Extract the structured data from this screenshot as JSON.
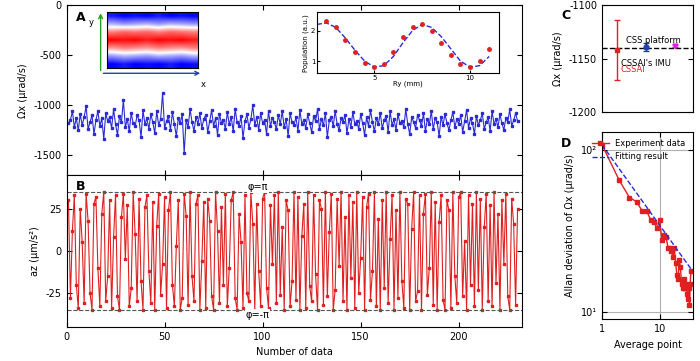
{
  "chart_data": [
    {
      "panel": "A",
      "type": "line",
      "ylabel": "Ωx (μrad/s)",
      "x": [
        1,
        2,
        3,
        4,
        5,
        6,
        7,
        8,
        9,
        10,
        11,
        12,
        13,
        14,
        15,
        16,
        17,
        18,
        19,
        20,
        21,
        22,
        23,
        24,
        25,
        26,
        27,
        28,
        29,
        30,
        31,
        32,
        33,
        34,
        35,
        36,
        37,
        38,
        39,
        40,
        41,
        42,
        43,
        44,
        45,
        46,
        47,
        48,
        49,
        50,
        51,
        52,
        53,
        54,
        55,
        56,
        57,
        58,
        59,
        60,
        61,
        62,
        63,
        64,
        65,
        66,
        67,
        68,
        69,
        70,
        71,
        72,
        73,
        74,
        75,
        76,
        77,
        78,
        79,
        80,
        81,
        82,
        83,
        84,
        85,
        86,
        87,
        88,
        89,
        90,
        91,
        92,
        93,
        94,
        95,
        96,
        97,
        98,
        99,
        100,
        101,
        102,
        103,
        104,
        105,
        106,
        107,
        108,
        109,
        110,
        111,
        112,
        113,
        114,
        115,
        116,
        117,
        118,
        119,
        120,
        121,
        122,
        123,
        124,
        125,
        126,
        127,
        128,
        129,
        130,
        131,
        132,
        133,
        134,
        135,
        136,
        137,
        138,
        139,
        140,
        141,
        142,
        143,
        144,
        145,
        146,
        147,
        148,
        149,
        150,
        151,
        152,
        153,
        154,
        155,
        156,
        157,
        158,
        159,
        160,
        161,
        162,
        163,
        164,
        165,
        166,
        167,
        168,
        169,
        170,
        171,
        172,
        173,
        174,
        175,
        176,
        177,
        178,
        179,
        180,
        181,
        182,
        183,
        184,
        185,
        186,
        187,
        188,
        189,
        190,
        191,
        192,
        193,
        194,
        195,
        196,
        197,
        198,
        199,
        200,
        201,
        202,
        203,
        204,
        205,
        206,
        207,
        208,
        209,
        210,
        211,
        212,
        213,
        214,
        215,
        216,
        217,
        218,
        219,
        220,
        221,
        222,
        223,
        224,
        225,
        226,
        227,
        228,
        229,
        230
      ],
      "values": [
        -1180,
        -1150,
        -1060,
        -1220,
        -1130,
        -1250,
        -1090,
        -1200,
        -1120,
        -1010,
        -1240,
        -1170,
        -1100,
        -1290,
        -1150,
        -1060,
        -1210,
        -1130,
        -1340,
        -1080,
        -1160,
        -1120,
        -1230,
        -1040,
        -1190,
        -1300,
        -1110,
        -1170,
        -950,
        -1220,
        -1140,
        -1260,
        -1080,
        -1180,
        -1210,
        -1100,
        -1150,
        -1320,
        -1050,
        -1190,
        -1130,
        -1240,
        -1090,
        -1170,
        -1280,
        -1060,
        -1200,
        -1140,
        -880,
        -1230,
        -1160,
        -1110,
        -1250,
        -1070,
        -1190,
        -1310,
        -1130,
        -1180,
        -1090,
        -1480,
        -1150,
        -1220,
        -1040,
        -1170,
        -1260,
        -1120,
        -1190,
        -1080,
        -1230,
        -1140,
        -1100,
        -1270,
        -1160,
        -1050,
        -1210,
        -1130,
        -1300,
        -1090,
        -1180,
        -1150,
        -1240,
        -1070,
        -1190,
        -1120,
        -1260,
        -1040,
        -1170,
        -1210,
        -1110,
        -1330,
        -1160,
        -1090,
        -1230,
        -1140,
        -1000,
        -1200,
        -1120,
        -1250,
        -1080,
        -1180,
        -1150,
        -1290,
        -1060,
        -1210,
        -1130,
        -1170,
        -1240,
        -1100,
        -1190,
        -1060,
        -1220,
        -1140,
        -1310,
        -1080,
        -1170,
        -1200,
        -1120,
        -1260,
        -1050,
        -1190,
        -1150,
        -1230,
        -1090,
        -1180,
        -1270,
        -1110,
        -1160,
        -1040,
        -1240,
        -1140,
        -1200,
        -1080,
        -1320,
        -1150,
        -1120,
        -1210,
        -1060,
        -1190,
        -1250,
        -1130,
        -1170,
        -1100,
        -1280,
        -1140,
        -1220,
        -1070,
        -1190,
        -1160,
        -1240,
        -1090,
        -1180,
        -1300,
        -1120,
        -1210,
        -1050,
        -1170,
        -1260,
        -1130,
        -1190,
        -1080,
        -1230,
        -1150,
        -1110,
        -1270,
        -1060,
        -1200,
        -1140,
        -1250,
        -1090,
        -1180,
        -1160,
        -1220,
        -1040,
        -1190,
        -1290,
        -1120,
        -1170,
        -1230,
        -1100,
        -1150,
        -1210,
        -1080,
        -1260,
        -1140,
        -1190,
        -1060,
        -1240,
        -1130,
        -1170,
        -1310,
        -1120,
        -1200,
        -1090,
        -1180,
        -1250,
        -1150,
        -1070,
        -1220,
        -1140,
        -1190,
        -1100,
        -1270,
        -1160,
        -1050,
        -1230,
        -1130,
        -1180,
        -1290,
        -1110,
        -1200,
        -1150,
        -1080,
        -1240,
        -1170,
        -1120,
        -1260,
        -1060,
        -1190,
        -1140,
        -1220,
        -1090,
        -1180,
        -1250,
        -1130,
        -1170,
        -1040,
        -1210,
        -1150,
        -1080,
        -1160
      ],
      "color": "#2b2bd6",
      "marker": "square",
      "line_style": "solid",
      "xlim": [
        0,
        232
      ],
      "ylim": [
        -1700,
        0
      ],
      "xticks": [
        0,
        50,
        100,
        150,
        200
      ],
      "yticks": [
        0,
        -500,
        -1000,
        -1500
      ],
      "tick_labels": "y",
      "grid": false,
      "inset_image": {
        "cells": [
          [
            -0.9,
            -1,
            -0.95,
            -1,
            -0.9,
            -1,
            -0.95,
            -1
          ],
          [
            -0.3,
            -0.4,
            -0.35,
            -0.3,
            -0.4,
            -0.3,
            -0.35,
            -0.4
          ],
          [
            0.5,
            0.6,
            0.55,
            0.6,
            0.5,
            0.6,
            0.55,
            0.5
          ],
          [
            1,
            0.95,
            1,
            0.9,
            1,
            0.95,
            1,
            0.9
          ],
          [
            0.4,
            0.5,
            0.45,
            0.4,
            0.5,
            0.45,
            0.4,
            0.5
          ],
          [
            -0.4,
            -0.3,
            -0.35,
            -0.4,
            -0.3,
            -0.35,
            -0.4,
            -0.3
          ],
          [
            -1,
            -0.9,
            -1,
            -0.95,
            -1,
            -0.9,
            -1,
            -0.95
          ]
        ],
        "color_range": [
          -1,
          1
        ],
        "arrow_labels": [
          "y",
          "x"
        ]
      },
      "inset": {
        "type": "scatter",
        "xlabel": "Ry (mm)",
        "ylabel": "Population (a.u.)",
        "xlim": [
          2,
          11.5
        ],
        "ylim": [
          0.6,
          2.6
        ],
        "xticks": [
          5,
          10
        ],
        "yticks": [
          1,
          2
        ],
        "points": {
          "x": [
            2.5,
            3,
            3.5,
            4,
            4.5,
            5,
            5.5,
            6,
            6.5,
            7,
            7.5,
            8,
            8.5,
            9,
            9.5,
            10,
            10.5,
            11
          ],
          "values": [
            2.3,
            2.1,
            1.7,
            1.3,
            0.95,
            0.8,
            0.9,
            1.3,
            1.8,
            2.1,
            2.2,
            2.0,
            1.6,
            1.2,
            0.9,
            0.8,
            1.0,
            1.4
          ],
          "color": "#e02020",
          "marker": "circle"
        },
        "fit": {
          "x": [
            2,
            2.5,
            3,
            3.5,
            4,
            4.5,
            5,
            5.5,
            6,
            6.5,
            7,
            7.5,
            8,
            8.5,
            9,
            9.5,
            10,
            10.5,
            11
          ],
          "values": [
            2.2,
            2.25,
            2.1,
            1.75,
            1.35,
            1.0,
            0.8,
            0.85,
            1.15,
            1.6,
            2.0,
            2.2,
            2.1,
            1.8,
            1.4,
            1.0,
            0.8,
            0.85,
            1.15
          ],
          "color": "#2b2bd6",
          "line_style": "dashed"
        }
      }
    },
    {
      "panel": "B",
      "type": "line",
      "ylabel": "az (μm/s²)",
      "xlabel": "Number of data",
      "x": [
        1,
        2,
        3,
        4,
        5,
        6,
        7,
        8,
        9,
        10,
        11,
        12,
        13,
        14,
        15,
        16,
        17,
        18,
        19,
        20,
        21,
        22,
        23,
        24,
        25,
        26,
        27,
        28,
        29,
        30,
        31,
        32,
        33,
        34,
        35,
        36,
        37,
        38,
        39,
        40,
        41,
        42,
        43,
        44,
        45,
        46,
        47,
        48,
        49,
        50,
        51,
        52,
        53,
        54,
        55,
        56,
        57,
        58,
        59,
        60,
        61,
        62,
        63,
        64,
        65,
        66,
        67,
        68,
        69,
        70,
        71,
        72,
        73,
        74,
        75,
        76,
        77,
        78,
        79,
        80,
        81,
        82,
        83,
        84,
        85,
        86,
        87,
        88,
        89,
        90,
        91,
        92,
        93,
        94,
        95,
        96,
        97,
        98,
        99,
        100,
        101,
        102,
        103,
        104,
        105,
        106,
        107,
        108,
        109,
        110,
        111,
        112,
        113,
        114,
        115,
        116,
        117,
        118,
        119,
        120,
        121,
        122,
        123,
        124,
        125,
        126,
        127,
        128,
        129,
        130,
        131,
        132,
        133,
        134,
        135,
        136,
        137,
        138,
        139,
        140,
        141,
        142,
        143,
        144,
        145,
        146,
        147,
        148,
        149,
        150,
        151,
        152,
        153,
        154,
        155,
        156,
        157,
        158,
        159,
        160,
        161,
        162,
        163,
        164,
        165,
        166,
        167,
        168,
        169,
        170,
        171,
        172,
        173,
        174,
        175,
        176,
        177,
        178,
        179,
        180,
        181,
        182,
        183,
        184,
        185,
        186,
        187,
        188,
        189,
        190,
        191,
        192,
        193,
        194,
        195,
        196,
        197,
        198,
        199,
        200,
        201,
        202,
        203,
        204,
        205,
        206,
        207,
        208,
        209,
        210,
        211,
        212,
        213,
        214,
        215,
        216,
        217,
        218,
        219,
        220,
        221,
        222,
        223,
        224,
        225,
        226,
        227,
        228,
        229,
        230
      ],
      "values": [
        30,
        -28,
        12,
        33,
        -20,
        -34,
        25,
        5,
        -31,
        34,
        18,
        -25,
        -35,
        28,
        32,
        -10,
        -33,
        22,
        35,
        -30,
        -15,
        30,
        -34,
        8,
        33,
        -27,
        -35,
        20,
        34,
        -5,
        27,
        -33,
        -22,
        35,
        10,
        -30,
        31,
        -18,
        -35,
        26,
        33,
        -12,
        -31,
        29,
        -35,
        15,
        34,
        -26,
        -8,
        32,
        -34,
        24,
        35,
        -20,
        -33,
        3,
        30,
        -35,
        -28,
        34,
        21,
        -32,
        35,
        -15,
        -30,
        28,
        33,
        -35,
        -6,
        29,
        -34,
        31,
        18,
        -27,
        -35,
        35,
        12,
        -31,
        26,
        -20,
        34,
        -33,
        -10,
        30,
        35,
        -28,
        -35,
        22,
        5,
        -34,
        33,
        -25,
        -30,
        35,
        16,
        -35,
        28,
        -12,
        -33,
        31,
        35,
        -22,
        -34,
        27,
        -8,
        33,
        -31,
        35,
        -26,
        14,
        -35,
        30,
        24,
        -33,
        -18,
        35,
        -29,
        32,
        -35,
        9,
        28,
        -34,
        35,
        -21,
        -30,
        33,
        -14,
        -35,
        30,
        25,
        -32,
        35,
        -27,
        11,
        34,
        -35,
        -23,
        31,
        -9,
        35,
        -30,
        20,
        -35,
        33,
        -16,
        29,
        -34,
        35,
        -25,
        -4,
        32,
        -35,
        26,
        34,
        -29,
        -12,
        35,
        -33,
        19,
        -35,
        30,
        -22,
        35,
        -31,
        7,
        33,
        -35,
        24,
        -28,
        35,
        -18,
        -34,
        31,
        28,
        -35,
        13,
        35,
        -30,
        -24,
        33,
        -35,
        22,
        34,
        -26,
        -10,
        35,
        -32,
        29,
        -35,
        17,
        33,
        -29,
        -35,
        30,
        24,
        -34,
        35,
        -15,
        -31,
        32,
        35,
        -27,
        6,
        -35,
        33,
        -20,
        28,
        -33,
        35,
        -23,
        31,
        -35,
        14,
        34,
        -30,
        27,
        -33,
        35,
        -19,
        22,
        -35,
        30,
        -8,
        34,
        -27,
        -35,
        31,
        16,
        -32,
        25
      ],
      "color": "#e02020",
      "marker": "square",
      "line_style": "solid",
      "xlim": [
        0,
        232
      ],
      "ylim": [
        -45,
        45
      ],
      "xticks": [
        0,
        50,
        100,
        150,
        200
      ],
      "yticks": [
        -25,
        0,
        25
      ],
      "grid": false,
      "reference_lines": [
        {
          "value": 35,
          "label": "φ=π"
        },
        {
          "value": -35,
          "label": "φ=-π"
        }
      ]
    },
    {
      "panel": "C",
      "type": "errorbar",
      "ylabel": "Ωx (μrad/s)",
      "series": [
        {
          "name": "CSSAI",
          "values": [
            -1142
          ],
          "errors": [
            28
          ],
          "color": "#e0202a",
          "marker": "square"
        },
        {
          "name": "CSSAI's IMU",
          "values": [
            -1139
          ],
          "errors": [
            4
          ],
          "color": "#2040b0",
          "marker": "circle"
        },
        {
          "name": "CSS platform",
          "values": [
            -1138
          ],
          "errors": [
            1
          ],
          "color": "#e020e0",
          "marker": "triangle_down"
        }
      ],
      "reference_line": -1140,
      "ylim": [
        -1200,
        -1100
      ],
      "yticks": [
        -1100,
        -1150,
        -1200
      ],
      "tick_labels": "y",
      "grid": false
    },
    {
      "panel": "D",
      "type": "line",
      "log": true,
      "xlabel": "Average point",
      "ylabel": "Allan deviation of Ωx (μrad/s)",
      "series": [
        {
          "name": "Experiment data",
          "color": "#e02020",
          "marker": "square",
          "line_style": "solid",
          "x": [
            1,
            2,
            3,
            4,
            5,
            6,
            7,
            8,
            9,
            10,
            11,
            12,
            13,
            14,
            15,
            16,
            17,
            18,
            19,
            20,
            21,
            22,
            23,
            24,
            25,
            26,
            27,
            28,
            29,
            30,
            31,
            32,
            33,
            34,
            35
          ],
          "values": [
            108,
            65,
            51,
            48,
            42,
            42,
            37,
            36,
            33,
            37,
            28,
            30,
            29,
            25,
            25,
            24,
            22,
            25,
            20,
            17,
            16,
            21,
            19,
            15,
            14,
            14,
            16,
            14,
            15,
            13,
            12,
            14,
            11,
            15,
            18
          ]
        },
        {
          "name": "Fitting result",
          "color": "#2b2bd6",
          "marker": "none",
          "line_style": "dashed",
          "x": [
            1,
            35
          ],
          "values": [
            108,
            18.5
          ]
        }
      ],
      "legend": "upper right",
      "grid": true,
      "xlim": [
        1,
        38
      ],
      "ylim": [
        9,
        130
      ],
      "xticks": [
        1,
        10
      ],
      "yticks": [
        {
          "value": 10,
          "label": "10¹"
        },
        {
          "value": 100,
          "label": "10²"
        }
      ]
    }
  ]
}
